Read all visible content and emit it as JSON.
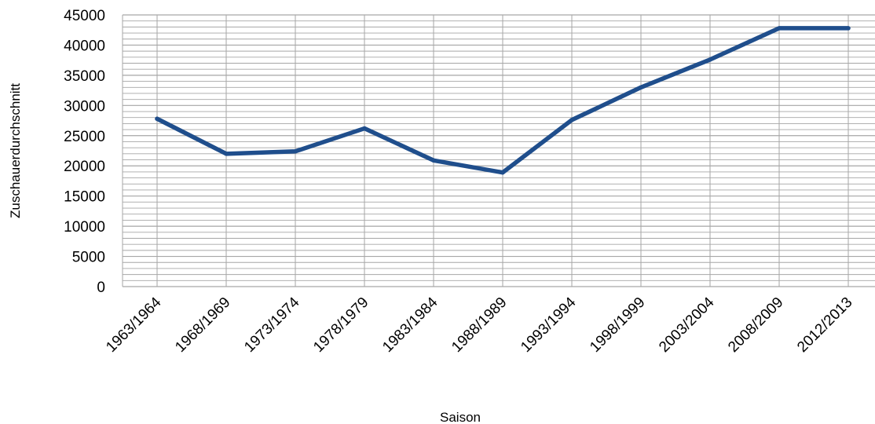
{
  "chart_data": {
    "type": "line",
    "title": "",
    "xlabel": "Saison",
    "ylabel": "Zuschauerdurchschnitt",
    "categories": [
      "1963/1964",
      "1968/1969",
      "1973/1974",
      "1978/1979",
      "1983/1984",
      "1988/1989",
      "1993/1994",
      "1998/1999",
      "2003/2004",
      "2008/2009",
      "2012/2013"
    ],
    "series": [
      {
        "values": [
          27800,
          22000,
          22400,
          26200,
          20900,
          18900,
          27600,
          33000,
          37600,
          42800,
          42800
        ]
      }
    ],
    "ylim": [
      0,
      45000
    ],
    "yticks": [
      0,
      5000,
      10000,
      15000,
      20000,
      25000,
      30000,
      35000,
      40000,
      45000
    ],
    "minor_gridline_step": 1000,
    "grid": true,
    "legend": "none",
    "colors": {
      "line": "#1f4e8c",
      "grid": "#a6a6a6"
    }
  }
}
